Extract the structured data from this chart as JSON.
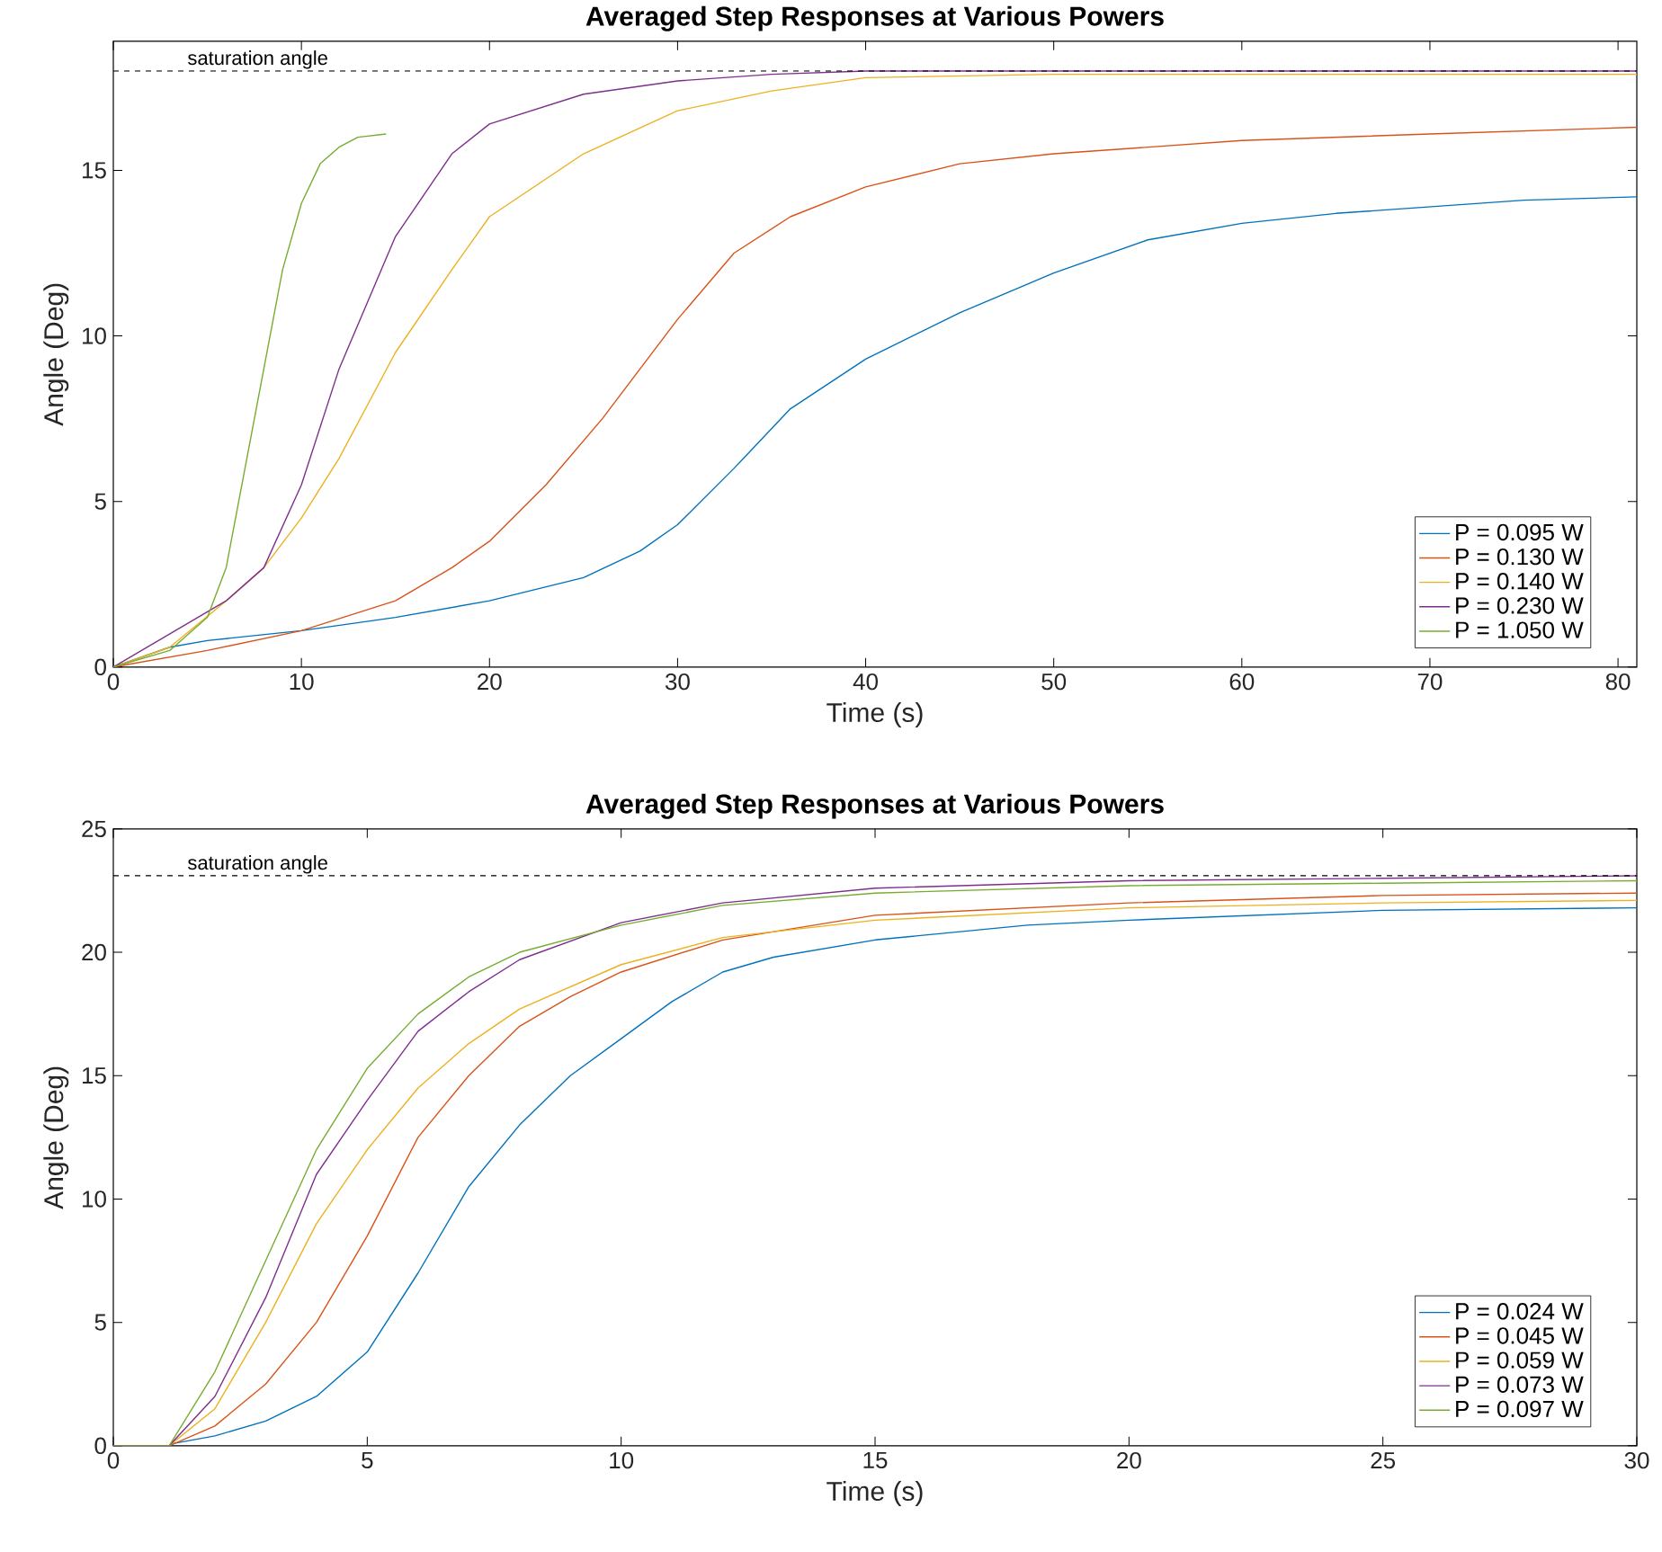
{
  "chart_data": [
    {
      "type": "line",
      "title": "Averaged Step Responses at Various Powers",
      "xlabel": "Time (s)",
      "ylabel": "Angle (Deg)",
      "xlim": [
        0,
        81
      ],
      "ylim": [
        0,
        18.9
      ],
      "xticks": [
        0,
        10,
        20,
        30,
        40,
        50,
        60,
        70,
        80
      ],
      "yticks": [
        0,
        5,
        10,
        15
      ],
      "grid": false,
      "legend": "bottom right",
      "line_style": "solid",
      "ref_lines": [
        {
          "axis": "y",
          "value": 18,
          "label": "saturation angle",
          "color": "#000000",
          "line_style": "dashed"
        }
      ],
      "series": [
        {
          "name": "P = 0.095 W",
          "color": "#0072bd",
          "x": [
            0,
            3,
            5,
            10,
            15,
            20,
            25,
            28,
            30,
            33,
            36,
            40,
            45,
            50,
            55,
            60,
            65,
            70,
            75,
            81
          ],
          "values": [
            0,
            0.6,
            0.8,
            1.1,
            1.5,
            2.0,
            2.7,
            3.5,
            4.3,
            6,
            7.8,
            9.3,
            10.7,
            11.9,
            12.9,
            13.4,
            13.7,
            13.9,
            14.1,
            14.2
          ]
        },
        {
          "name": "P = 0.130 W",
          "color": "#d95319",
          "x": [
            0,
            5,
            10,
            15,
            18,
            20,
            23,
            26,
            30,
            33,
            36,
            40,
            45,
            50,
            55,
            60,
            70,
            81
          ],
          "values": [
            0,
            0.5,
            1.1,
            2.0,
            3,
            3.8,
            5.5,
            7.5,
            10.5,
            12.5,
            13.6,
            14.5,
            15.2,
            15.5,
            15.7,
            15.9,
            16.1,
            16.3
          ]
        },
        {
          "name": "P = 0.140 W",
          "color": "#edb120",
          "x": [
            0,
            3,
            6,
            8,
            10,
            12,
            15,
            18,
            20,
            25,
            30,
            35,
            40,
            50,
            81
          ],
          "values": [
            0,
            0.6,
            2,
            3,
            4.5,
            6.3,
            9.5,
            12,
            13.6,
            15.5,
            16.8,
            17.4,
            17.8,
            17.9,
            17.9
          ]
        },
        {
          "name": "P = 0.230 W",
          "color": "#7e2f8e",
          "x": [
            0,
            3,
            6,
            8,
            10,
            12,
            15,
            18,
            20,
            25,
            30,
            35,
            40,
            81
          ],
          "values": [
            0,
            1,
            2,
            3,
            5.5,
            9,
            13,
            15.5,
            16.4,
            17.3,
            17.7,
            17.9,
            18,
            18
          ]
        },
        {
          "name": "P = 1.050 W",
          "color": "#77ac30",
          "x": [
            0,
            3,
            5,
            6,
            7,
            8,
            9,
            10,
            11,
            12,
            13,
            14.5
          ],
          "values": [
            0,
            0.5,
            1.5,
            3,
            6,
            9,
            12,
            14,
            15.2,
            15.7,
            16,
            16.1
          ]
        }
      ]
    },
    {
      "type": "line",
      "title": "Averaged Step Responses at Various Powers",
      "xlabel": "Time (s)",
      "ylabel": "Angle (Deg)",
      "xlim": [
        0,
        30
      ],
      "ylim": [
        0,
        25
      ],
      "xticks": [
        0,
        5,
        10,
        15,
        20,
        25,
        30
      ],
      "yticks": [
        0,
        5,
        10,
        15,
        20,
        25
      ],
      "grid": false,
      "legend": "bottom right",
      "line_style": "solid",
      "ref_lines": [
        {
          "axis": "y",
          "value": 23.1,
          "label": "saturation angle",
          "color": "#000000",
          "line_style": "dashed"
        }
      ],
      "series": [
        {
          "name": "P = 0.024 W",
          "color": "#0072bd",
          "x": [
            0,
            1.1,
            1.2,
            2,
            3,
            4,
            5,
            6,
            7,
            8,
            9,
            10,
            11,
            12,
            13,
            15,
            18,
            20,
            25,
            30
          ],
          "values": [
            0,
            0,
            0.1,
            0.4,
            1,
            2,
            3.8,
            7,
            10.5,
            13,
            15,
            16.5,
            18,
            19.2,
            19.8,
            20.5,
            21.1,
            21.3,
            21.7,
            21.8
          ]
        },
        {
          "name": "P = 0.045 W",
          "color": "#d95319",
          "x": [
            0,
            1.1,
            2,
            3,
            4,
            5,
            6,
            7,
            8,
            9,
            10,
            12,
            15,
            20,
            25,
            30
          ],
          "values": [
            0,
            0,
            0.8,
            2.5,
            5,
            8.5,
            12.5,
            15,
            17,
            18.2,
            19.2,
            20.5,
            21.5,
            22,
            22.3,
            22.4
          ]
        },
        {
          "name": "P = 0.059 W",
          "color": "#edb120",
          "x": [
            0,
            1.1,
            2,
            3,
            4,
            5,
            6,
            7,
            8,
            10,
            12,
            15,
            20,
            25,
            30
          ],
          "values": [
            0,
            0,
            1.5,
            5,
            9,
            12,
            14.5,
            16.3,
            17.7,
            19.5,
            20.6,
            21.3,
            21.8,
            22,
            22.1
          ]
        },
        {
          "name": "P = 0.073 W",
          "color": "#7e2f8e",
          "x": [
            0,
            1.1,
            2,
            3,
            4,
            5,
            6,
            7,
            8,
            10,
            12,
            15,
            20,
            25,
            30
          ],
          "values": [
            0,
            0,
            2,
            6,
            11,
            14,
            16.8,
            18.4,
            19.7,
            21.2,
            22,
            22.6,
            22.9,
            23,
            23.1
          ]
        },
        {
          "name": "P = 0.097 W",
          "color": "#77ac30",
          "x": [
            0,
            1.1,
            2,
            3,
            4,
            5,
            6,
            7,
            8,
            10,
            12,
            15,
            20,
            25,
            30
          ],
          "values": [
            0,
            0,
            3,
            7.5,
            12,
            15.3,
            17.5,
            19,
            20,
            21.1,
            21.9,
            22.4,
            22.7,
            22.8,
            22.9
          ]
        }
      ]
    }
  ]
}
